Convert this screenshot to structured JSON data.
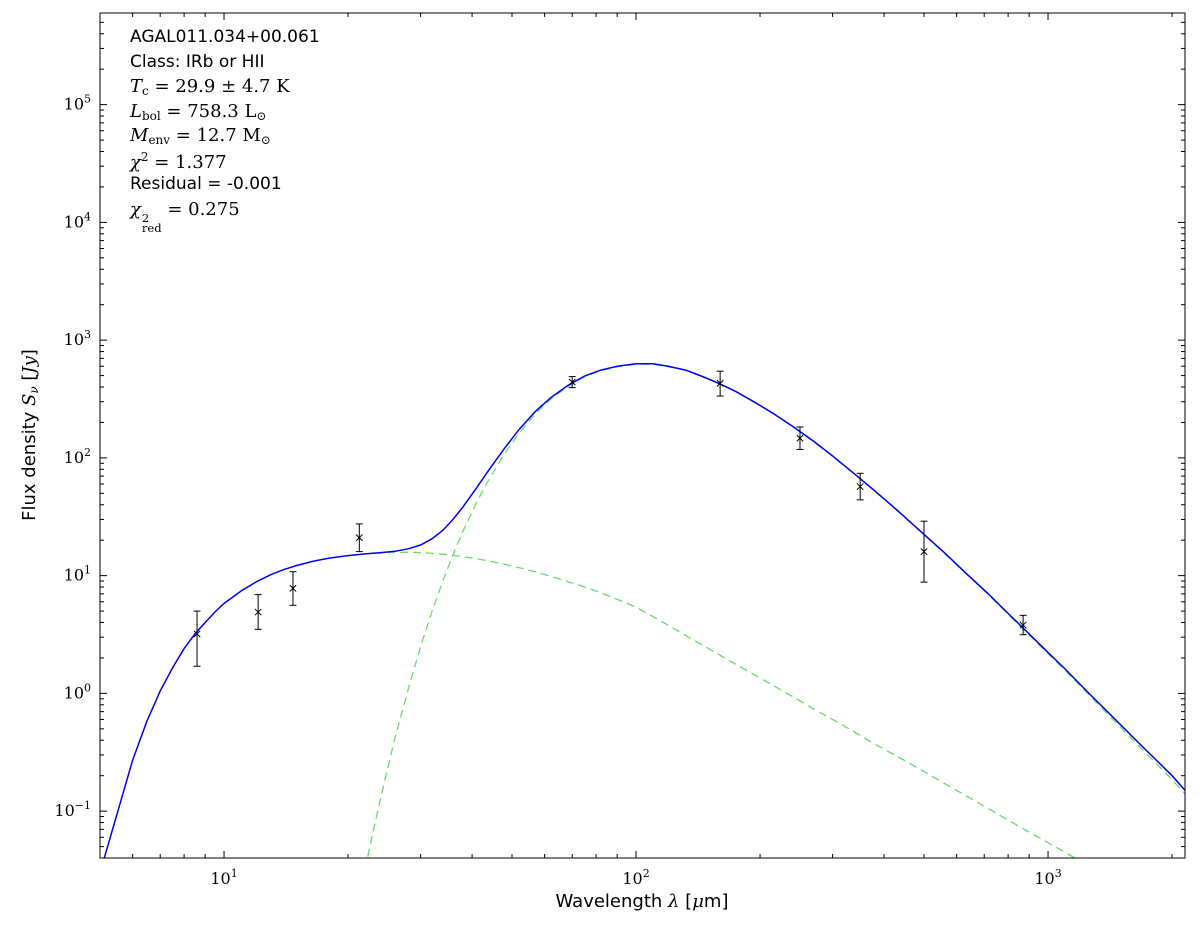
{
  "figure": {
    "background": "#ffffff",
    "annotation": {
      "lines": [
        {
          "name": "source-name",
          "segments": [
            {
              "t": "AGAL011.034+00.061",
              "s": "sans"
            }
          ]
        },
        {
          "name": "source-class",
          "segments": [
            {
              "t": "Class: IRb or HII",
              "s": "sans"
            }
          ]
        },
        {
          "name": "dust-temperature",
          "segments": [
            {
              "t": "T",
              "s": "it"
            },
            {
              "t": "c",
              "s": "sub"
            },
            {
              "t": " = 29.9 ± 4.7 K",
              "s": "rm"
            }
          ]
        },
        {
          "name": "bolometric-luminosity",
          "segments": [
            {
              "t": "L",
              "s": "it"
            },
            {
              "t": "bol",
              "s": "sub"
            },
            {
              "t": " = 758.3 L",
              "s": "rm"
            },
            {
              "t": "⊙",
              "s": "sub"
            }
          ]
        },
        {
          "name": "envelope-mass",
          "segments": [
            {
              "t": "M",
              "s": "it"
            },
            {
              "t": "env",
              "s": "sub"
            },
            {
              "t": " = 12.7 M",
              "s": "rm"
            },
            {
              "t": "⊙",
              "s": "sub"
            }
          ]
        },
        {
          "name": "chi-squared",
          "segments": [
            {
              "t": "χ",
              "s": "it"
            },
            {
              "t": "2",
              "s": "sup"
            },
            {
              "t": " = 1.377",
              "s": "rm"
            }
          ]
        },
        {
          "name": "residual",
          "segments": [
            {
              "t": "Residual = -0.001",
              "s": "sans"
            }
          ]
        },
        {
          "name": "chi-squared-reduced",
          "segments": [
            {
              "t": "χ",
              "s": "it"
            },
            {
              "sup": "2",
              "sub": "red",
              "s": "stack"
            },
            {
              "t": " = 0.275",
              "s": "rm"
            }
          ]
        }
      ]
    }
  },
  "chart_data": {
    "type": "line",
    "title": "",
    "xlabel": "Wavelength λ [μm]",
    "ylabel": "Flux density S_ν [Jy]",
    "xscale": "log",
    "yscale": "log",
    "xlim": [
      5,
      2150
    ],
    "ylim": [
      0.04,
      600000
    ],
    "grid": false,
    "legend": false,
    "x_tick_exponents": [
      1,
      2,
      3
    ],
    "y_tick_exponents": [
      -1,
      0,
      1,
      2,
      3,
      4,
      5
    ],
    "xlabel_segments": [
      {
        "t": "Wavelength ",
        "s": "sans"
      },
      {
        "t": "λ",
        "s": "it"
      },
      {
        "t": " [",
        "s": "sans"
      },
      {
        "t": "μ",
        "s": "it"
      },
      {
        "t": "m]",
        "s": "sans"
      }
    ],
    "ylabel_segments": [
      {
        "t": "Flux density ",
        "s": "sans"
      },
      {
        "t": "S",
        "s": "it"
      },
      {
        "t": "ν",
        "s": "subit"
      },
      {
        "t": " [",
        "s": "sans"
      },
      {
        "t": "Jy",
        "s": "it"
      },
      {
        "t": "]",
        "s": "sans"
      }
    ],
    "colors": {
      "total_fit": "#0000ee",
      "components": "#66dd66",
      "data": "#000000"
    },
    "series": [
      {
        "name": "hot-component",
        "color": "#66dd66",
        "dash": true,
        "points": [
          [
            20,
            14.8
          ],
          [
            22,
            15.3
          ],
          [
            25,
            15.7
          ],
          [
            28,
            15.8
          ],
          [
            31,
            15.6
          ],
          [
            34,
            15.2
          ],
          [
            38,
            14.5
          ],
          [
            42,
            13.7
          ],
          [
            47,
            12.7
          ],
          [
            52,
            11.7
          ],
          [
            58,
            10.6
          ],
          [
            65,
            9.4
          ],
          [
            72,
            8.4
          ],
          [
            80,
            7.4
          ],
          [
            90,
            6.3
          ],
          [
            100,
            5.4
          ],
          [
            115,
            4.1
          ],
          [
            130,
            3.2
          ],
          [
            150,
            2.4
          ],
          [
            175,
            1.76
          ],
          [
            200,
            1.35
          ],
          [
            235,
            0.98
          ],
          [
            275,
            0.71
          ],
          [
            320,
            0.53
          ],
          [
            375,
            0.38
          ],
          [
            440,
            0.28
          ],
          [
            520,
            0.2
          ],
          [
            615,
            0.143
          ],
          [
            730,
            0.101
          ],
          [
            870,
            0.071
          ],
          [
            1000,
            0.054
          ],
          [
            1100,
            0.0446
          ],
          [
            1200,
            0.0375
          ]
        ]
      },
      {
        "name": "cold-component",
        "color": "#66dd66",
        "dash": true,
        "points": [
          [
            22,
            0.032
          ],
          [
            23,
            0.067
          ],
          [
            24,
            0.13
          ],
          [
            26,
            0.42
          ],
          [
            28,
            1.09
          ],
          [
            30,
            2.5
          ],
          [
            32,
            5.0
          ],
          [
            34,
            9.1
          ],
          [
            36,
            15.2
          ],
          [
            38,
            23.7
          ],
          [
            41,
            41.7
          ],
          [
            44,
            66
          ],
          [
            48,
            109
          ],
          [
            52,
            162
          ],
          [
            57,
            237
          ],
          [
            62,
            313
          ],
          [
            68,
            399
          ],
          [
            75,
            488
          ],
          [
            82,
            549
          ],
          [
            90,
            594
          ],
          [
            100,
            625
          ],
          [
            110,
            625
          ],
          [
            120,
            594
          ],
          [
            132,
            554
          ],
          [
            145,
            488
          ],
          [
            160,
            423
          ],
          [
            175,
            363
          ],
          [
            195,
            293
          ],
          [
            215,
            238
          ],
          [
            240,
            184
          ],
          [
            270,
            137
          ],
          [
            300,
            103
          ],
          [
            340,
            72
          ],
          [
            380,
            52
          ],
          [
            430,
            35.7
          ],
          [
            480,
            25.3
          ],
          [
            560,
            15.5
          ],
          [
            630,
            10.5
          ],
          [
            710,
            7.1
          ],
          [
            800,
            4.7
          ],
          [
            870,
            3.52
          ],
          [
            960,
            2.5
          ],
          [
            1100,
            1.57
          ],
          [
            1250,
            0.99
          ],
          [
            1450,
            0.58
          ],
          [
            1700,
            0.33
          ],
          [
            2000,
            0.185
          ],
          [
            2150,
            0.14
          ]
        ]
      },
      {
        "name": "total-fit",
        "color": "#0000ee",
        "dash": false,
        "points": [
          [
            5,
            0.03
          ],
          [
            5.5,
            0.095
          ],
          [
            6,
            0.27
          ],
          [
            6.5,
            0.58
          ],
          [
            7,
            1.05
          ],
          [
            7.5,
            1.65
          ],
          [
            8,
            2.4
          ],
          [
            8.5,
            3.2
          ],
          [
            9,
            4.0
          ],
          [
            9.5,
            4.9
          ],
          [
            10,
            5.8
          ],
          [
            11,
            7.4
          ],
          [
            12,
            8.9
          ],
          [
            13,
            10.2
          ],
          [
            14,
            11.3
          ],
          [
            15,
            12.2
          ],
          [
            16.5,
            13.3
          ],
          [
            18,
            14.1
          ],
          [
            20,
            14.8
          ],
          [
            22,
            15.3
          ],
          [
            24,
            15.7
          ],
          [
            26,
            16.1
          ],
          [
            28,
            16.9
          ],
          [
            30,
            18.2
          ],
          [
            32,
            20.6
          ],
          [
            34,
            24.3
          ],
          [
            36,
            30.2
          ],
          [
            38,
            38.2
          ],
          [
            41,
            55.6
          ],
          [
            44,
            79.3
          ],
          [
            48,
            121
          ],
          [
            52,
            174
          ],
          [
            57,
            248
          ],
          [
            62,
            323
          ],
          [
            68,
            408
          ],
          [
            75,
            496
          ],
          [
            82,
            556
          ],
          [
            90,
            600
          ],
          [
            100,
            630
          ],
          [
            110,
            629
          ],
          [
            120,
            598
          ],
          [
            132,
            557
          ],
          [
            145,
            491
          ],
          [
            160,
            425
          ],
          [
            175,
            365
          ],
          [
            195,
            294
          ],
          [
            215,
            239
          ],
          [
            240,
            185
          ],
          [
            270,
            138
          ],
          [
            300,
            104
          ],
          [
            340,
            72.5
          ],
          [
            380,
            52.4
          ],
          [
            430,
            36
          ],
          [
            480,
            25.5
          ],
          [
            560,
            15.7
          ],
          [
            630,
            10.6
          ],
          [
            710,
            7.2
          ],
          [
            800,
            4.78
          ],
          [
            870,
            3.59
          ],
          [
            960,
            2.56
          ],
          [
            1100,
            1.61
          ],
          [
            1250,
            1.02
          ],
          [
            1450,
            0.61
          ],
          [
            1700,
            0.35
          ],
          [
            2000,
            0.2
          ],
          [
            2150,
            0.15
          ]
        ]
      }
    ],
    "data_points": {
      "marker": "x",
      "color": "#000000",
      "x": [
        8.6,
        12.1,
        14.7,
        21.3,
        70,
        160,
        250,
        350,
        500,
        870
      ],
      "y": [
        3.2,
        4.9,
        7.8,
        21,
        440,
        430,
        147,
        57,
        16,
        3.8
      ],
      "y_lo": [
        1.7,
        3.5,
        5.6,
        16,
        395,
        335,
        118,
        44,
        8.8,
        3.15
      ],
      "y_hi": [
        5.0,
        6.9,
        10.8,
        27.5,
        490,
        545,
        183,
        74,
        29,
        4.6
      ]
    }
  }
}
